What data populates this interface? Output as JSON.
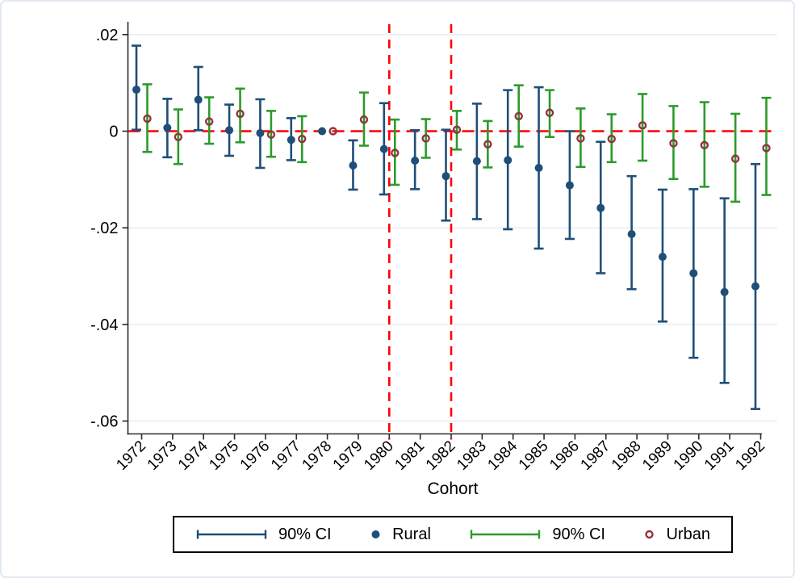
{
  "chart_data": {
    "type": "scatter",
    "subtype": "coefficient-errorbar-plot",
    "title": "",
    "xlabel": "Cohort",
    "ylabel": "",
    "categories": [
      1972,
      1973,
      1974,
      1975,
      1976,
      1977,
      1978,
      1979,
      1980,
      1981,
      1982,
      1983,
      1984,
      1985,
      1986,
      1987,
      1988,
      1989,
      1990,
      1991,
      1992
    ],
    "reference_category": 1978,
    "ytick_labels": [
      ".02",
      "0",
      "-.02",
      "-.04",
      "-.06"
    ],
    "ytick_values": [
      0.02,
      0,
      -0.02,
      -0.04,
      -0.06
    ],
    "ylim": [
      -0.0627,
      0.0227
    ],
    "grid": true,
    "series": [
      {
        "name": "Rural",
        "ci_label": "90% CI",
        "color": "#1f4e79",
        "marker": "filled-circle",
        "values": [
          0.0086,
          0.0007,
          0.0065,
          0.0002,
          -0.0004,
          -0.0018,
          0,
          -0.0071,
          -0.0037,
          -0.0061,
          -0.0093,
          -0.0062,
          -0.006,
          -0.0076,
          -0.0112,
          -0.0159,
          -0.0213,
          -0.026,
          -0.0294,
          -0.0333,
          -0.0321
        ],
        "ci_low": [
          0.0003,
          -0.0054,
          0.0002,
          -0.0051,
          -0.0076,
          -0.006,
          null,
          -0.0121,
          -0.0131,
          -0.012,
          -0.0185,
          -0.0182,
          -0.0203,
          -0.0243,
          -0.0223,
          -0.0294,
          -0.0327,
          -0.0394,
          -0.0469,
          -0.0521,
          -0.0575
        ],
        "ci_high": [
          0.0177,
          0.0067,
          0.0133,
          0.0055,
          0.0066,
          0.0027,
          null,
          -0.0019,
          0.0058,
          0.0002,
          0.0003,
          0.0057,
          0.0085,
          0.0091,
          0.0,
          -0.0022,
          -0.0093,
          -0.0121,
          -0.012,
          -0.0139,
          -0.0068
        ]
      },
      {
        "name": "Urban",
        "ci_label": "90% CI",
        "color": "#2b9b2b",
        "marker": "hollow-circle",
        "marker_color": "#90353b",
        "values": [
          0.0026,
          -0.0012,
          0.002,
          0.0036,
          -0.0007,
          -0.0016,
          0,
          0.0024,
          -0.0045,
          -0.0015,
          0.0003,
          -0.0027,
          0.0031,
          0.0038,
          -0.0015,
          -0.0016,
          0.0012,
          -0.0025,
          -0.0029,
          -0.0057,
          -0.0035
        ],
        "ci_low": [
          -0.0043,
          -0.0068,
          -0.0026,
          -0.0023,
          -0.0053,
          -0.0064,
          null,
          -0.003,
          -0.0111,
          -0.0055,
          -0.0038,
          -0.0075,
          -0.0032,
          -0.0012,
          -0.0074,
          -0.0064,
          -0.0061,
          -0.0099,
          -0.0115,
          -0.0146,
          -0.0132
        ],
        "ci_high": [
          0.0097,
          0.0045,
          0.007,
          0.0088,
          0.0042,
          0.0031,
          null,
          0.008,
          0.0024,
          0.0025,
          0.0042,
          0.0021,
          0.0095,
          0.0085,
          0.0047,
          0.0035,
          0.0077,
          0.0052,
          0.006,
          0.0036,
          0.0069
        ]
      }
    ],
    "reference_lines": {
      "horizontal": {
        "y": 0,
        "color": "#ff0000",
        "style": "dashed"
      },
      "vertical": [
        {
          "x": 1980,
          "color": "#ff0000",
          "style": "dashed"
        },
        {
          "x": 1982,
          "color": "#ff0000",
          "style": "dashed"
        }
      ]
    },
    "legend_position": "bottom"
  },
  "legend": {
    "items": [
      {
        "type": "ci-line",
        "color": "#1f4e79",
        "label": "90% CI"
      },
      {
        "type": "filled-dot",
        "color": "#1f4e79",
        "label": "Rural"
      },
      {
        "type": "ci-line",
        "color": "#2b9b2b",
        "label": "90% CI"
      },
      {
        "type": "hollow-dot",
        "color": "#90353b",
        "label": "Urban"
      }
    ]
  },
  "style_colors": {
    "gridline": "#e8eef4",
    "axis": "#2b2b2b",
    "frame_border": "#e0e9f1",
    "background": "#ffffff"
  }
}
